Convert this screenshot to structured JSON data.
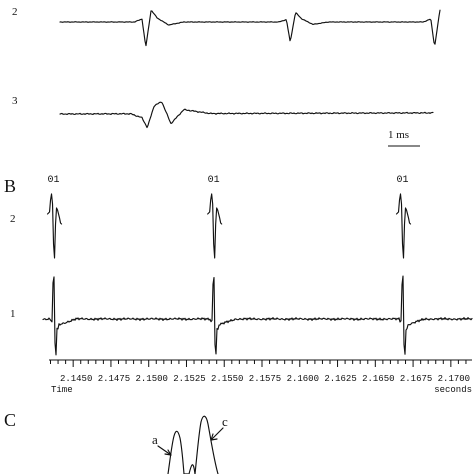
{
  "chart_data": [
    {
      "type": "line",
      "panel": "",
      "series": [
        {
          "name": "2",
          "spikes_ms": [
            0.0,
            1.9,
            3.8
          ],
          "baseline": 0
        },
        {
          "name": "3",
          "spikes_ms": [
            0.0
          ],
          "baseline": 0
        }
      ],
      "scale_bar_label": "1 ms",
      "scale_bar_value_ms": 1,
      "x_start_ms": -1.2,
      "x_end_ms": 4.5
    },
    {
      "type": "line",
      "panel": "B",
      "series": [
        {
          "name": "2",
          "unit_label": "01",
          "spike_times_s": [
            2.1437,
            2.1543,
            2.1668
          ]
        },
        {
          "name": "1",
          "spike_times_s": [
            2.1437,
            2.1543,
            2.1668
          ]
        }
      ],
      "xlabel": "Time",
      "xunit": "seconds",
      "x_tick_labels": [
        "2.1450",
        "2.1475",
        "2.1500",
        "2.1525",
        "2.1550",
        "2.1575",
        "2.1600",
        "2.1625",
        "2.1650",
        "2.1675",
        "2.1700"
      ],
      "x_ticks": [
        2.145,
        2.1475,
        2.15,
        2.1525,
        2.155,
        2.1575,
        2.16,
        2.1625,
        2.165,
        2.1675,
        2.17
      ],
      "xlim": [
        2.1434,
        2.1714
      ]
    },
    {
      "type": "line",
      "panel": "C",
      "annotations": [
        "a",
        "c"
      ]
    }
  ]
}
